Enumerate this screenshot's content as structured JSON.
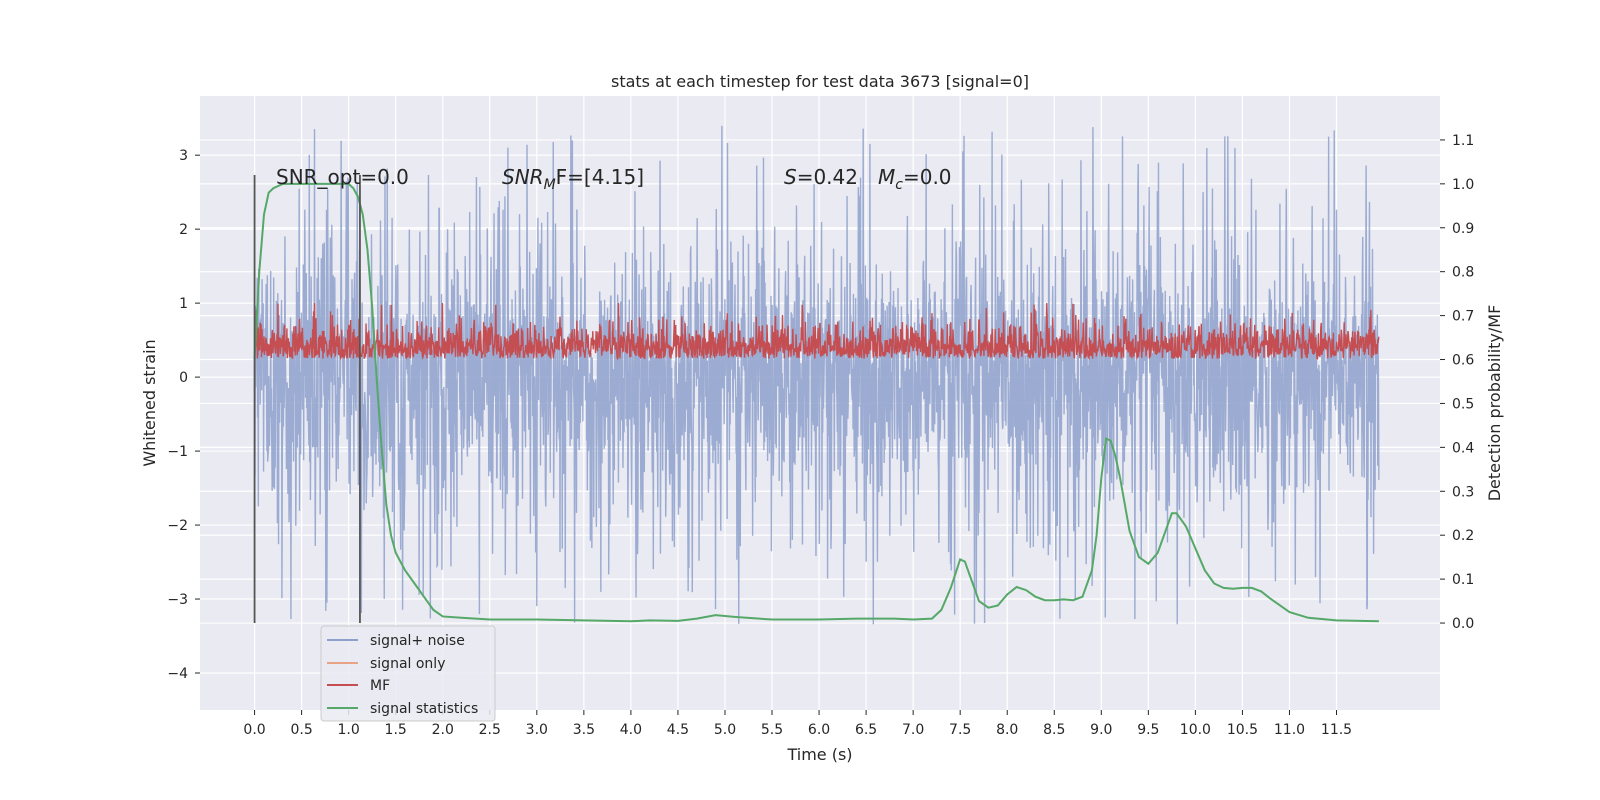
{
  "chart_data": {
    "type": "line",
    "title": "stats at each timestep for test data 3673 [signal=0]",
    "xlabel": "Time (s)",
    "ylabel": "Whitened strain",
    "y2label": "Detection probability/MF",
    "xlim": [
      -0.58,
      12.6
    ],
    "ylim": [
      -4.5,
      3.8
    ],
    "y2lim": [
      -0.198,
      1.2
    ],
    "xticks": [
      0.0,
      0.5,
      1.0,
      1.5,
      2.0,
      2.5,
      3.0,
      3.5,
      4.0,
      4.5,
      5.0,
      5.5,
      6.0,
      6.5,
      7.0,
      7.5,
      8.0,
      8.5,
      9.0,
      9.5,
      10.0,
      10.5,
      11.0,
      11.5
    ],
    "xtick_labels": [
      "0.0",
      "0.5",
      "1.0",
      "1.5",
      "2.0",
      "2.5",
      "3.0",
      "3.5",
      "4.0",
      "4.5",
      "5.0",
      "5.5",
      "6.0",
      "6.5",
      "7.0",
      "7.5",
      "8.0",
      "8.5",
      "9.0",
      "9.5",
      "10.0",
      "10.5",
      "11.0",
      "11.5"
    ],
    "yticks": [
      3,
      2,
      1,
      0,
      -1,
      -2,
      -3,
      -4
    ],
    "ytick_labels": [
      "3",
      "2",
      "1",
      "0",
      "−1",
      "−2",
      "−3",
      "−4"
    ],
    "y2ticks": [
      1.1,
      1.0,
      0.9,
      0.8,
      0.7,
      0.6,
      0.5,
      0.4,
      0.3,
      0.2,
      0.1,
      0.0
    ],
    "y2tick_labels": [
      "1.1",
      "1.0",
      "0.9",
      "0.8",
      "0.7",
      "0.6",
      "0.5",
      "0.4",
      "0.3",
      "0.2",
      "0.1",
      "0.0"
    ],
    "grid": true,
    "legend_position": "lower-left",
    "annotations": {
      "snr_opt": "SNR_opt=0.0",
      "snr_mf_main": "SNR",
      "snr_mf_sub": "M",
      "snr_mf_rest": "F=[4.15]",
      "s_label": "S",
      "s_value": "=0.42",
      "mc_label": "M",
      "mc_sub": "c",
      "mc_value": "=0.0"
    },
    "series": [
      {
        "name": "signal+ noise",
        "color": "#8da0cb",
        "kind": "noise",
        "center": 0.0,
        "spread": 1.5,
        "t_start": 0.0,
        "t_end": 11.95,
        "min": -4.1,
        "max": 3.5
      },
      {
        "name": "signal only",
        "color": "#e8a386",
        "kind": "flat",
        "values": []
      },
      {
        "name": "MF",
        "color": "#c44e52",
        "kind": "noise",
        "center": 0.25,
        "spread": 0.22,
        "t_start": 0.0,
        "t_end": 11.95,
        "min": 0.0,
        "max": 1.0
      },
      {
        "name": "signal statistics",
        "color": "#55a868",
        "kind": "curve",
        "x": [
          0.0,
          0.05,
          0.1,
          0.15,
          0.2,
          0.3,
          0.5,
          0.8,
          1.0,
          1.05,
          1.1,
          1.15,
          1.2,
          1.25,
          1.3,
          1.35,
          1.4,
          1.45,
          1.5,
          1.6,
          1.7,
          1.8,
          1.9,
          2.0,
          2.2,
          2.5,
          3.0,
          3.5,
          4.0,
          4.2,
          4.5,
          4.7,
          4.9,
          5.1,
          5.5,
          6.0,
          6.4,
          6.8,
          7.0,
          7.2,
          7.3,
          7.4,
          7.5,
          7.55,
          7.6,
          7.7,
          7.8,
          7.9,
          8.0,
          8.1,
          8.2,
          8.3,
          8.4,
          8.5,
          8.6,
          8.7,
          8.8,
          8.9,
          8.95,
          9.0,
          9.05,
          9.1,
          9.15,
          9.2,
          9.3,
          9.4,
          9.5,
          9.6,
          9.7,
          9.75,
          9.8,
          9.9,
          10.0,
          10.1,
          10.2,
          10.3,
          10.4,
          10.5,
          10.6,
          10.7,
          10.8,
          10.9,
          11.0,
          11.2,
          11.5,
          11.95
        ],
        "y": [
          0.6,
          0.8,
          0.93,
          0.98,
          0.99,
          1.0,
          1.0,
          1.0,
          1.0,
          0.99,
          0.97,
          0.93,
          0.85,
          0.72,
          0.55,
          0.4,
          0.27,
          0.2,
          0.16,
          0.12,
          0.09,
          0.06,
          0.03,
          0.015,
          0.012,
          0.008,
          0.008,
          0.006,
          0.004,
          0.006,
          0.005,
          0.01,
          0.018,
          0.014,
          0.008,
          0.008,
          0.01,
          0.01,
          0.008,
          0.01,
          0.03,
          0.08,
          0.145,
          0.14,
          0.11,
          0.05,
          0.035,
          0.04,
          0.065,
          0.082,
          0.075,
          0.06,
          0.052,
          0.052,
          0.054,
          0.052,
          0.06,
          0.12,
          0.2,
          0.33,
          0.42,
          0.415,
          0.38,
          0.33,
          0.21,
          0.15,
          0.135,
          0.16,
          0.22,
          0.25,
          0.25,
          0.22,
          0.17,
          0.12,
          0.09,
          0.08,
          0.078,
          0.08,
          0.08,
          0.072,
          0.055,
          0.04,
          0.025,
          0.012,
          0.006,
          0.004
        ]
      }
    ],
    "vertical_markers": [
      0.0,
      1.12
    ]
  }
}
